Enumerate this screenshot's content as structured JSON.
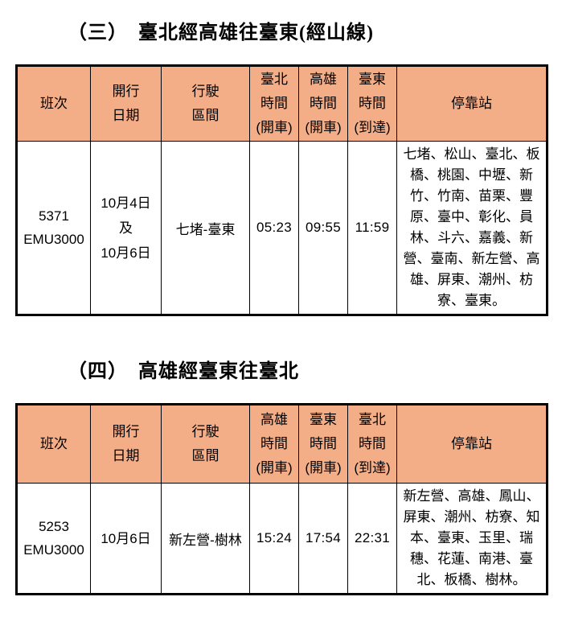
{
  "colors": {
    "header_bg": "#F3AE88",
    "border": "#000000",
    "text": "#000000"
  },
  "sections": [
    {
      "title": "（三）　臺北經高雄往臺東(經山線)",
      "table": {
        "columns": [
          [
            "班次"
          ],
          [
            "開行",
            "日期"
          ],
          [
            "行駛",
            "區間"
          ],
          [
            "臺北",
            "時間",
            "(開車)"
          ],
          [
            "高雄",
            "時間",
            "(開車)"
          ],
          [
            "臺東",
            "時間",
            "(到達)"
          ],
          [
            "停靠站"
          ]
        ],
        "row": {
          "train_no": [
            "5371",
            "EMU3000"
          ],
          "dates": [
            "10月4日",
            "及",
            "10月6日"
          ],
          "route_section": "七堵-臺東",
          "times": [
            "05:23",
            "09:55",
            "11:59"
          ],
          "stops": "七堵、松山、臺北、板橋、桃園、中壢、新竹、竹南、苗栗、豐原、臺中、彰化、員林、斗六、嘉義、新營、臺南、新左營、高雄、屏東、潮州、枋寮、臺東。"
        }
      }
    },
    {
      "title": "（四）　高雄經臺東往臺北",
      "table": {
        "columns": [
          [
            "班次"
          ],
          [
            "開行",
            "日期"
          ],
          [
            "行駛",
            "區間"
          ],
          [
            "高雄",
            "時間",
            "(開車)"
          ],
          [
            "臺東",
            "時間",
            "(開車)"
          ],
          [
            "臺北",
            "時間",
            "(到達)"
          ],
          [
            "停靠站"
          ]
        ],
        "row": {
          "train_no": [
            "5253",
            "EMU3000"
          ],
          "dates": [
            "10月6日"
          ],
          "route_section": "新左營-樹林",
          "times": [
            "15:24",
            "17:54",
            "22:31"
          ],
          "stops": "新左營、高雄、鳳山、屏東、潮州、枋寮、知本、臺東、玉里、瑞穗、花蓮、南港、臺北、板橋、樹林。"
        }
      }
    }
  ]
}
